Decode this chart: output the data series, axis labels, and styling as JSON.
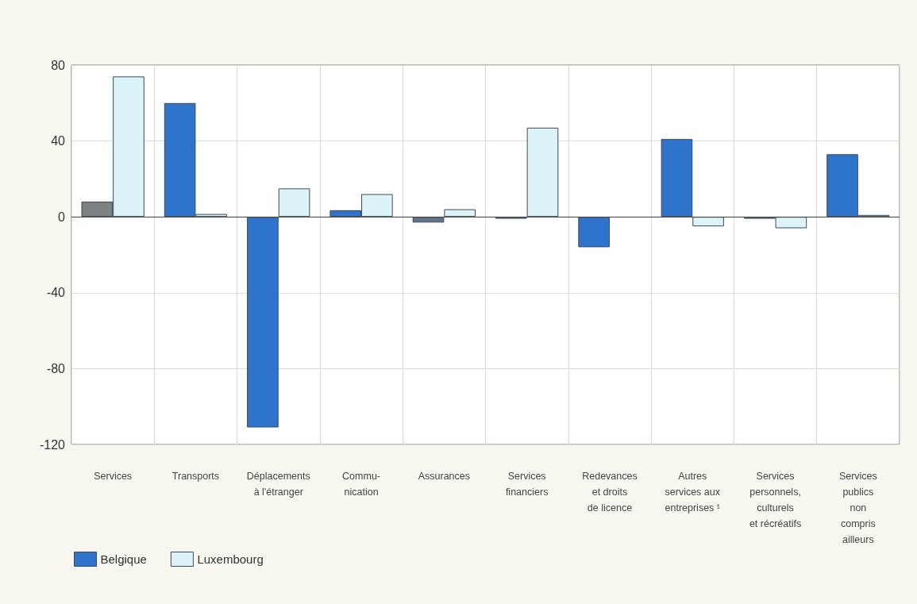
{
  "chart_data": {
    "type": "bar",
    "categories": [
      "Services",
      "Transports",
      "Déplacements\nà l'étranger",
      "Commu-\nnication",
      "Assurances",
      "Services\nfinanciers",
      "Redevances\net droits\nde licence",
      "Autres\nservices aux\nentreprises ¹",
      "Services\npersonnels,\nculturels\net récréatifs",
      "Services\npublics\nnon\ncompris\nailleurs"
    ],
    "series": [
      {
        "name": "Belgique",
        "color": "#2f74cc",
        "colors": [
          "#7f8282",
          "#2f74cc",
          "#2f74cc",
          "#2f74cc",
          "#607488",
          "#607488",
          "#2f74cc",
          "#2f74cc",
          "#607488",
          "#2f74cc"
        ],
        "values": [
          8,
          60,
          -111,
          3.5,
          -3,
          -1,
          -16,
          41,
          -1,
          33
        ]
      },
      {
        "name": "Luxembourg",
        "color": "#dcf4f8",
        "values": [
          74,
          1.5,
          15,
          12,
          4,
          47,
          null,
          -5,
          -6,
          1
        ]
      }
    ],
    "ylim": [
      -120,
      80
    ],
    "yticks": [
      -120,
      -80,
      -40,
      0,
      40,
      80
    ],
    "grid": true,
    "legend": "bottom left"
  }
}
